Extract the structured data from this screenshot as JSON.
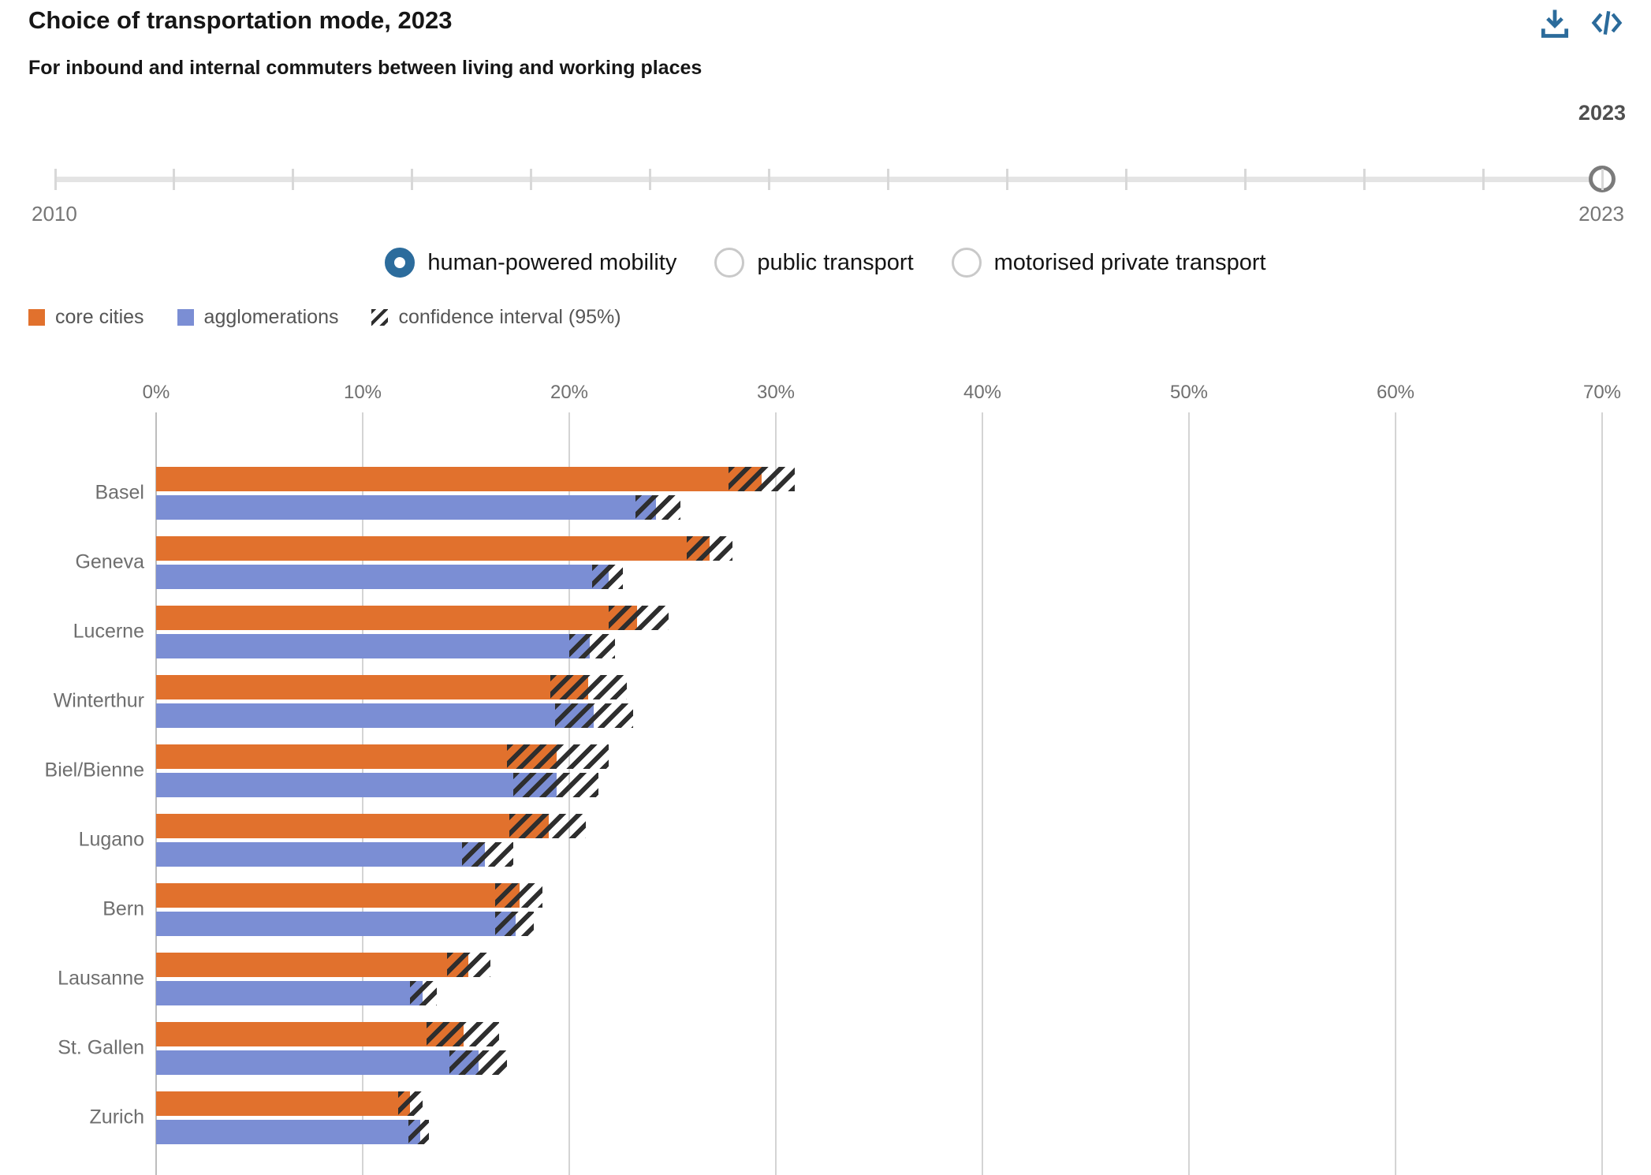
{
  "header": {
    "title": "Choice of transportation mode, 2023",
    "subtitle": "For inbound and internal commuters between living and working places"
  },
  "toolbar": {
    "download_icon": "download",
    "embed_icon": "embed-code"
  },
  "slider": {
    "selected_year_label": "2023",
    "min_label": "2010",
    "max_label": "2023",
    "min_year": 2010,
    "max_year": 2023,
    "selected_year": 2023
  },
  "mode_options": [
    {
      "label": "human-powered mobility",
      "selected": true
    },
    {
      "label": "public transport",
      "selected": false
    },
    {
      "label": "motorised private transport",
      "selected": false
    }
  ],
  "legend": [
    {
      "label": "core cities",
      "swatch": "solid",
      "color": "#E1712D"
    },
    {
      "label": "agglomerations",
      "swatch": "solid",
      "color": "#7B8ED4"
    },
    {
      "label": "confidence interval (95%)",
      "swatch": "hatch",
      "color": "#2E2E2E"
    }
  ],
  "chart_data": {
    "type": "bar",
    "orientation": "horizontal",
    "unit": "%",
    "title": "Choice of transportation mode, 2023 — human-powered mobility",
    "categories": [
      "Basel",
      "Geneva",
      "Lucerne",
      "Winterthur",
      "Biel/Bienne",
      "Lugano",
      "Bern",
      "Lausanne",
      "St. Gallen",
      "Zurich"
    ],
    "axis": {
      "min": 0,
      "max": 70,
      "tick_step": 10,
      "tick_labels": [
        "0%",
        "10%",
        "20%",
        "30%",
        "40%",
        "50%",
        "60%",
        "70%"
      ]
    },
    "grid": true,
    "series": [
      {
        "name": "core cities",
        "color": "#E1712D",
        "values": [
          29.3,
          26.8,
          23.3,
          20.9,
          19.4,
          19.0,
          17.6,
          15.1,
          14.9,
          12.3
        ],
        "ci_low": [
          27.7,
          25.7,
          21.9,
          19.1,
          17.0,
          17.1,
          16.4,
          14.1,
          13.1,
          11.7
        ],
        "ci_high": [
          30.9,
          27.9,
          24.8,
          22.8,
          21.9,
          20.8,
          18.7,
          16.2,
          16.6,
          12.9
        ]
      },
      {
        "name": "agglomerations",
        "color": "#7B8ED4",
        "values": [
          24.2,
          21.9,
          21.0,
          21.2,
          19.4,
          15.9,
          17.4,
          12.9,
          15.6,
          12.8
        ],
        "ci_low": [
          23.2,
          21.1,
          20.0,
          19.3,
          17.3,
          14.8,
          16.4,
          12.3,
          14.2,
          12.2
        ],
        "ci_high": [
          25.4,
          22.6,
          22.2,
          23.1,
          21.4,
          17.3,
          18.3,
          13.6,
          17.0,
          13.2
        ]
      }
    ],
    "ci_label": "confidence interval (95%)"
  },
  "colors": {
    "accent_blue": "#2B6B9B",
    "bar_orange": "#E1712D",
    "bar_blue": "#7B8ED4",
    "hatch": "#2E2E2E",
    "gridline": "#D4D4D4",
    "text_muted": "#6E6E6E"
  }
}
